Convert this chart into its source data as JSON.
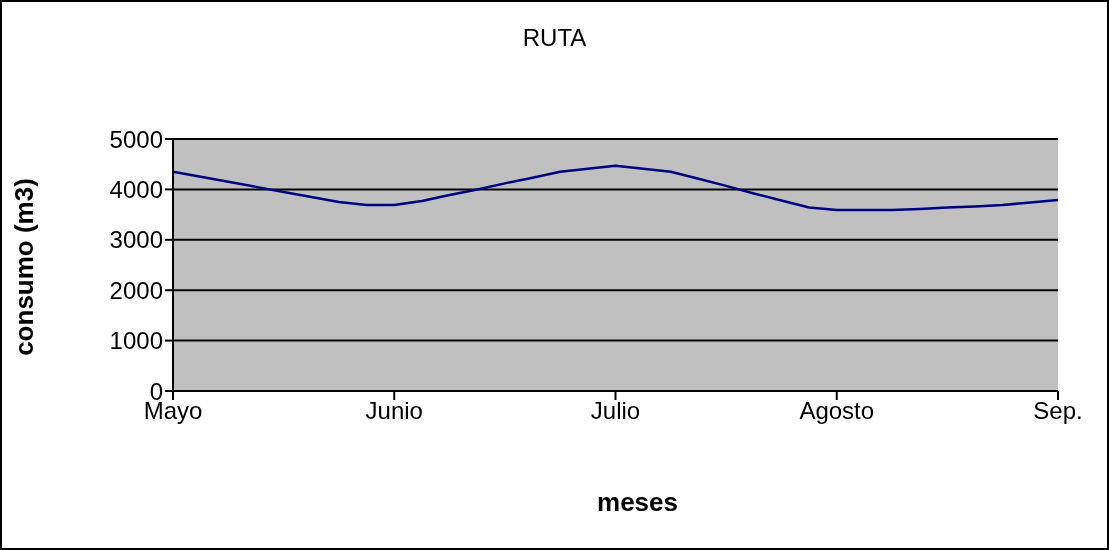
{
  "chart_data": {
    "type": "line",
    "title": "RUTA",
    "xlabel": "meses",
    "ylabel": "consumo (m3)",
    "categories": [
      "Mayo",
      null,
      null,
      null,
      null,
      null,
      null,
      null,
      "Junio",
      null,
      null,
      null,
      null,
      null,
      null,
      null,
      "Julio",
      null,
      null,
      null,
      null,
      null,
      null,
      null,
      "Agosto",
      null,
      null,
      null,
      null,
      null,
      null,
      null,
      "Sep."
    ],
    "series": [
      {
        "color": "#000080",
        "values": [
          4350,
          4250,
          4150,
          4050,
          3950,
          3850,
          3750,
          3690,
          3690,
          3770,
          3890,
          4000,
          4120,
          4230,
          4350,
          4410,
          4470,
          4410,
          4350,
          4210,
          4070,
          3920,
          3780,
          3640,
          3590,
          3590,
          3590,
          3610,
          3640,
          3660,
          3690,
          3740,
          3790
        ]
      }
    ],
    "ylim": [
      0,
      5000
    ],
    "yticks": [
      0,
      1000,
      2000,
      3000,
      4000,
      5000
    ],
    "grid": "y",
    "legend": false,
    "marker": "none",
    "line_style": "solid"
  }
}
